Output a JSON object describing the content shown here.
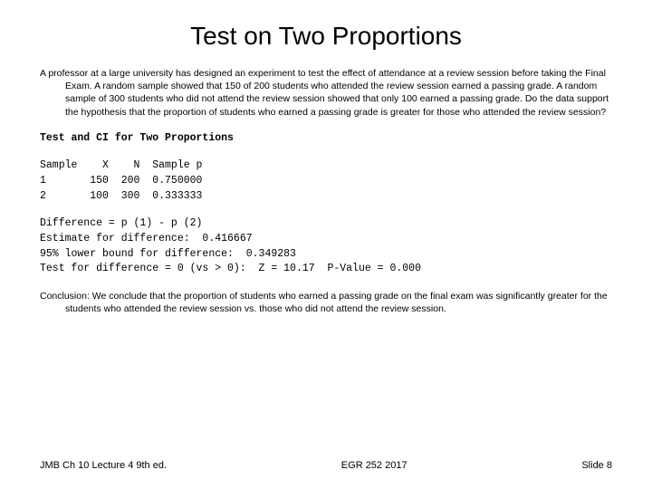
{
  "title": "Test on Two Proportions",
  "intro": "A professor at a large university has designed an experiment to test the effect of attendance at a review session before taking the Final Exam. A random sample showed that 150 of 200 students who attended the review session earned a passing grade.  A random sample of 300 students who did not attend the review session showed that only 100 earned a passing grade.  Do the data support the hypothesis that the proportion of students who earned a passing grade is greater for those who attended the review session?",
  "output_heading": "Test and CI for Two Proportions",
  "sample_table": "Sample    X    N  Sample p\n1       150  200  0.750000\n2       100  300  0.333333",
  "stats_block": "Difference = p (1) - p (2)\nEstimate for difference:  0.416667\n95% lower bound for difference:  0.349283\nTest for difference = 0 (vs > 0):  Z = 10.17  P-Value = 0.000",
  "conclusion": "Conclusion: We conclude that the proportion of students who earned a passing grade on the final exam was significantly greater for the students who attended the review session vs. those who did not attend the review session.",
  "footer": {
    "left": "JMB Ch 10 Lecture 4  9th ed.",
    "center": "EGR 252 2017",
    "right": "Slide 8"
  }
}
